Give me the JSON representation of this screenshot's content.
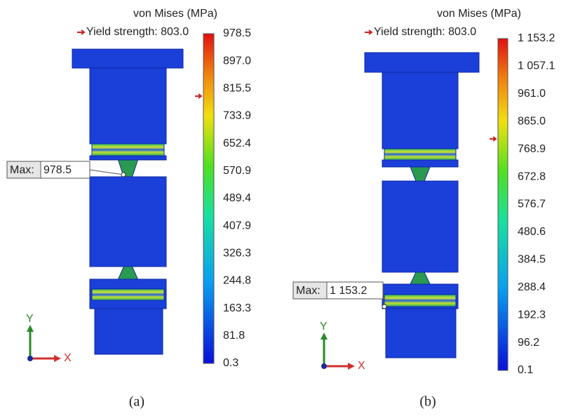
{
  "panels": [
    {
      "title": "von Mises (MPa)",
      "yield_label": "Yield strength: 803.0",
      "scale_labels": [
        "978.5",
        "897.0",
        "815.5",
        "733.9",
        "652.4",
        "570.9",
        "489.4",
        "407.9",
        "326.3",
        "244.8",
        "163.3",
        "81.8",
        "0.3"
      ],
      "max_label": "Max:",
      "max_value": "978.5",
      "axis_y": "Y",
      "axis_x": "X",
      "caption": "(a)"
    },
    {
      "title": "von Mises (MPa)",
      "yield_label": "Yield strength: 803.0",
      "scale_labels": [
        "1 153.2",
        "1 057.1",
        "961.0",
        "865.0",
        "768.9",
        "672.8",
        "576.7",
        "480.6",
        "384.5",
        "288.4",
        "192.3",
        "96.2",
        "0.1"
      ],
      "max_label": "Max:",
      "max_value": "1 153.2",
      "axis_y": "Y",
      "axis_x": "X",
      "caption": "(b)"
    }
  ]
}
